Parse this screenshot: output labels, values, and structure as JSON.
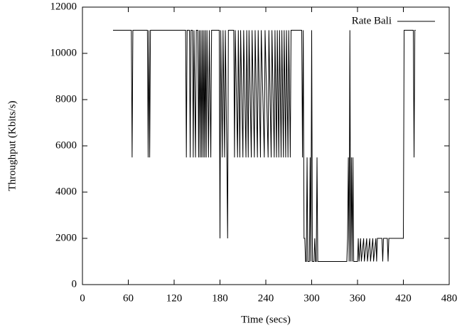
{
  "chart_data": {
    "type": "line",
    "xlabel": "Time (secs)",
    "ylabel": "Throughput (Kbits/s)",
    "xlim": [
      0,
      480
    ],
    "xticks": [
      0,
      60,
      120,
      180,
      240,
      300,
      360,
      420,
      480
    ],
    "ylim": [
      0,
      12000
    ],
    "yticks": [
      0,
      2000,
      4000,
      6000,
      8000,
      10000,
      12000
    ],
    "legend": "top-right",
    "series": [
      {
        "name": "Rate Bali",
        "color": "#000000",
        "x": [
          40,
          64,
          65,
          66,
          85,
          86,
          87,
          88,
          89,
          135,
          136,
          137,
          140,
          141,
          142,
          144,
          145,
          146,
          148,
          149,
          151,
          152,
          153,
          154,
          155,
          156,
          157,
          158,
          159,
          160,
          161,
          162,
          163,
          165,
          166,
          168,
          169,
          179,
          180,
          181,
          183,
          184,
          186,
          187,
          189,
          190,
          191,
          198,
          199,
          200,
          203,
          204,
          206,
          207,
          210,
          211,
          214,
          215,
          217,
          218,
          221,
          222,
          225,
          226,
          229,
          230,
          233,
          234,
          238,
          239,
          243,
          244,
          247,
          248,
          251,
          252,
          254,
          255,
          257,
          258,
          260,
          261,
          263,
          264,
          266,
          267,
          269,
          270,
          272,
          273,
          287,
          288,
          289,
          290,
          291,
          292,
          293,
          294,
          295,
          297,
          298,
          299,
          300,
          301,
          303,
          304,
          305,
          306,
          307,
          308,
          346,
          347,
          348,
          349,
          350,
          351,
          352,
          353,
          354,
          355,
          360,
          361,
          362,
          364,
          365,
          368,
          369,
          372,
          373,
          376,
          377,
          380,
          381,
          384,
          385,
          386,
          392,
          393,
          394,
          399,
          400,
          401,
          420,
          421,
          433,
          434,
          435,
          436
        ],
        "values": [
          11000,
          11000,
          5500,
          11000,
          11000,
          5500,
          11000,
          5500,
          11000,
          11000,
          5500,
          11000,
          11000,
          5500,
          11000,
          11000,
          5500,
          11000,
          5500,
          11000,
          11000,
          5500,
          11000,
          5500,
          11000,
          5500,
          11000,
          5500,
          11000,
          5500,
          11000,
          5500,
          11000,
          5500,
          11000,
          5500,
          11000,
          11000,
          2000,
          11000,
          5500,
          11000,
          5500,
          11000,
          5500,
          2000,
          11000,
          11000,
          5500,
          11000,
          5500,
          11000,
          5500,
          11000,
          5500,
          11000,
          5500,
          11000,
          5500,
          11000,
          5500,
          11000,
          5500,
          11000,
          5500,
          11000,
          5500,
          11000,
          5500,
          11000,
          5500,
          11000,
          5500,
          11000,
          5500,
          11000,
          5500,
          11000,
          5500,
          11000,
          5500,
          11000,
          5500,
          11000,
          5500,
          11000,
          5500,
          11000,
          5500,
          11000,
          11000,
          5500,
          11000,
          2000,
          2000,
          1000,
          1000,
          5500,
          1000,
          1000,
          5500,
          1000,
          11000,
          1000,
          1000,
          2000,
          1000,
          1000,
          5500,
          1000,
          1000,
          2000,
          5500,
          1000,
          11000,
          1000,
          5500,
          1000,
          5500,
          1000,
          1000,
          2000,
          1000,
          2000,
          1000,
          2000,
          1000,
          2000,
          1000,
          2000,
          1000,
          2000,
          1000,
          2000,
          1000,
          2000,
          2000,
          1000,
          2000,
          2000,
          1000,
          2000,
          2000,
          11000,
          11000,
          5500,
          11000,
          11000
        ]
      }
    ]
  }
}
